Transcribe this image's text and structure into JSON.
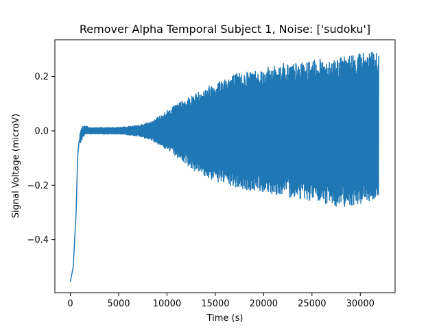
{
  "chart_data": {
    "type": "line",
    "title": "Remover Alpha Temporal Subject 1, Noise: ['sudoku']",
    "xlabel": "Time (s)",
    "ylabel": "Signal Voltage (microV)",
    "xlim": [
      -1600,
      33600
    ],
    "ylim": [
      -0.595,
      0.335
    ],
    "xticks": [
      0,
      5000,
      10000,
      15000,
      20000,
      25000,
      30000
    ],
    "xtick_labels": [
      "0",
      "5000",
      "10000",
      "15000",
      "20000",
      "25000",
      "30000"
    ],
    "yticks": [
      -0.4,
      -0.2,
      0.0,
      0.2
    ],
    "ytick_labels": [
      "−0.4",
      "−0.2",
      "0.0",
      "0.2"
    ],
    "grid": false,
    "legend": "none",
    "series": [
      {
        "color": "#1f77b4",
        "x_range": [
          0,
          31900
        ],
        "baseline": [
          [
            0,
            -0.555
          ],
          [
            300,
            -0.5
          ],
          [
            600,
            -0.3
          ],
          [
            750,
            -0.1
          ],
          [
            900,
            -0.04
          ],
          [
            1100,
            -0.015
          ],
          [
            1500,
            0.0
          ],
          [
            2000,
            0.0
          ],
          [
            5000,
            0.0
          ],
          [
            32000,
            0.0
          ]
        ],
        "envelope_upper": [
          [
            0,
            -0.555
          ],
          [
            300,
            -0.5
          ],
          [
            600,
            -0.3
          ],
          [
            900,
            -0.02
          ],
          [
            1200,
            0.015
          ],
          [
            1600,
            0.02
          ],
          [
            2000,
            0.012
          ],
          [
            5000,
            0.013
          ],
          [
            7000,
            0.02
          ],
          [
            8500,
            0.035
          ],
          [
            10000,
            0.075
          ],
          [
            11500,
            0.11
          ],
          [
            13000,
            0.14
          ],
          [
            14500,
            0.17
          ],
          [
            16000,
            0.2
          ],
          [
            18000,
            0.22
          ],
          [
            20000,
            0.23
          ],
          [
            22000,
            0.25
          ],
          [
            24000,
            0.25
          ],
          [
            26000,
            0.265
          ],
          [
            28000,
            0.27
          ],
          [
            30000,
            0.29
          ],
          [
            31900,
            0.29
          ]
        ],
        "envelope_lower": [
          [
            0,
            -0.555
          ],
          [
            300,
            -0.5
          ],
          [
            600,
            -0.3
          ],
          [
            900,
            -0.06
          ],
          [
            1200,
            -0.03
          ],
          [
            1600,
            -0.01
          ],
          [
            2000,
            -0.012
          ],
          [
            5000,
            -0.012
          ],
          [
            7000,
            -0.02
          ],
          [
            8500,
            -0.035
          ],
          [
            10000,
            -0.07
          ],
          [
            11500,
            -0.11
          ],
          [
            13000,
            -0.15
          ],
          [
            14500,
            -0.18
          ],
          [
            16000,
            -0.2
          ],
          [
            18000,
            -0.22
          ],
          [
            20000,
            -0.225
          ],
          [
            22000,
            -0.24
          ],
          [
            24000,
            -0.25
          ],
          [
            26000,
            -0.27
          ],
          [
            28000,
            -0.28
          ],
          [
            30000,
            -0.27
          ],
          [
            31900,
            -0.25
          ]
        ]
      }
    ]
  }
}
